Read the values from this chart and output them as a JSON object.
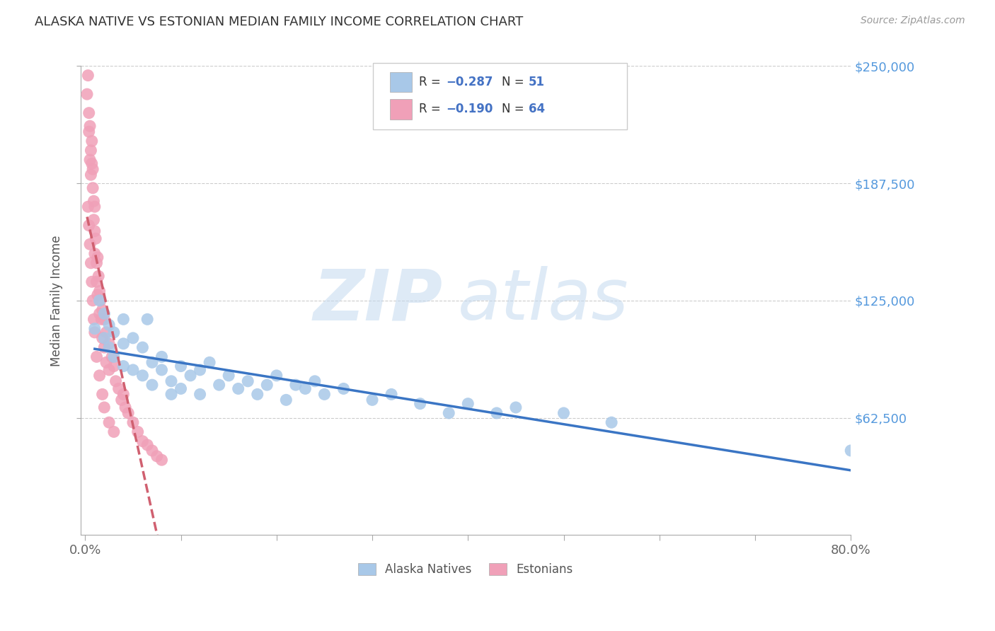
{
  "title": "ALASKA NATIVE VS ESTONIAN MEDIAN FAMILY INCOME CORRELATION CHART",
  "source": "Source: ZipAtlas.com",
  "ylabel": "Median Family Income",
  "xlim": [
    -0.005,
    0.8
  ],
  "ylim": [
    0,
    250000
  ],
  "xtick_labels": [
    "0.0%",
    "",
    "",
    "",
    "",
    "",
    "",
    "",
    "80.0%"
  ],
  "xtick_values": [
    0.0,
    0.1,
    0.2,
    0.3,
    0.4,
    0.5,
    0.6,
    0.7,
    0.8
  ],
  "ytick_labels": [
    "$62,500",
    "$125,000",
    "$187,500",
    "$250,000"
  ],
  "ytick_values": [
    62500,
    125000,
    187500,
    250000
  ],
  "blue_color": "#A8C8E8",
  "pink_color": "#F0A0B8",
  "blue_line_color": "#3A75C4",
  "pink_line_color": "#D06070",
  "watermark_zip": "ZIP",
  "watermark_atlas": "atlas",
  "alaska_x": [
    0.01,
    0.015,
    0.02,
    0.02,
    0.025,
    0.025,
    0.03,
    0.03,
    0.04,
    0.04,
    0.04,
    0.05,
    0.05,
    0.06,
    0.06,
    0.065,
    0.07,
    0.07,
    0.08,
    0.08,
    0.09,
    0.09,
    0.1,
    0.1,
    0.11,
    0.12,
    0.12,
    0.13,
    0.14,
    0.15,
    0.16,
    0.17,
    0.18,
    0.19,
    0.2,
    0.21,
    0.22,
    0.23,
    0.24,
    0.25,
    0.27,
    0.3,
    0.32,
    0.35,
    0.38,
    0.4,
    0.43,
    0.45,
    0.5,
    0.55,
    0.8
  ],
  "alaska_y": [
    110000,
    125000,
    105000,
    118000,
    100000,
    112000,
    108000,
    95000,
    115000,
    102000,
    90000,
    105000,
    88000,
    100000,
    85000,
    115000,
    92000,
    80000,
    88000,
    95000,
    82000,
    75000,
    90000,
    78000,
    85000,
    88000,
    75000,
    92000,
    80000,
    85000,
    78000,
    82000,
    75000,
    80000,
    85000,
    72000,
    80000,
    78000,
    82000,
    75000,
    78000,
    72000,
    75000,
    70000,
    65000,
    70000,
    65000,
    68000,
    65000,
    60000,
    45000
  ],
  "estonian_x": [
    0.002,
    0.003,
    0.004,
    0.004,
    0.005,
    0.005,
    0.006,
    0.006,
    0.007,
    0.007,
    0.008,
    0.008,
    0.009,
    0.009,
    0.01,
    0.01,
    0.01,
    0.011,
    0.012,
    0.012,
    0.013,
    0.013,
    0.014,
    0.015,
    0.015,
    0.016,
    0.017,
    0.018,
    0.018,
    0.02,
    0.02,
    0.022,
    0.022,
    0.025,
    0.025,
    0.028,
    0.03,
    0.032,
    0.035,
    0.038,
    0.04,
    0.042,
    0.045,
    0.05,
    0.055,
    0.06,
    0.065,
    0.07,
    0.075,
    0.08,
    0.003,
    0.004,
    0.005,
    0.006,
    0.007,
    0.008,
    0.009,
    0.01,
    0.012,
    0.015,
    0.018,
    0.02,
    0.025,
    0.03
  ],
  "estonian_y": [
    235000,
    245000,
    225000,
    215000,
    200000,
    218000,
    205000,
    192000,
    210000,
    198000,
    185000,
    195000,
    178000,
    168000,
    175000,
    162000,
    150000,
    158000,
    145000,
    135000,
    148000,
    128000,
    138000,
    130000,
    118000,
    125000,
    115000,
    120000,
    105000,
    115000,
    100000,
    108000,
    92000,
    102000,
    88000,
    95000,
    90000,
    82000,
    78000,
    72000,
    75000,
    68000,
    65000,
    60000,
    55000,
    50000,
    48000,
    45000,
    42000,
    40000,
    175000,
    165000,
    155000,
    145000,
    135000,
    125000,
    115000,
    108000,
    95000,
    85000,
    75000,
    68000,
    60000,
    55000
  ]
}
